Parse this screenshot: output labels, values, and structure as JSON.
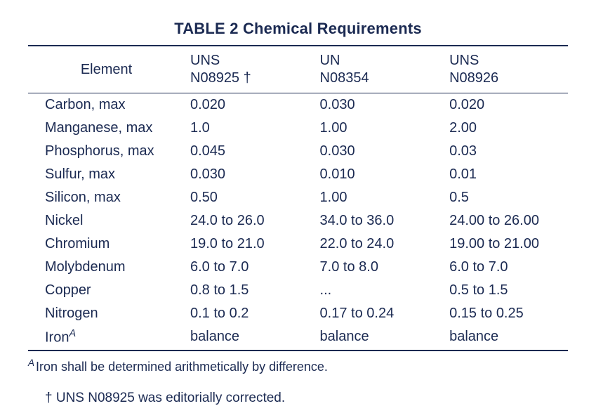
{
  "colors": {
    "text": "#1b2a52",
    "rule": "#1b2a52",
    "background": "#ffffff"
  },
  "title": "TABLE 2 Chemical Requirements",
  "table": {
    "columns": [
      {
        "line1": "Element",
        "line2": "",
        "centered": true
      },
      {
        "line1": "UNS",
        "line2": "N08925 †"
      },
      {
        "line1": "UN",
        "line2": "N08354"
      },
      {
        "line1": "UNS",
        "line2": "N08926"
      }
    ],
    "rows": [
      {
        "element": "Carbon, max",
        "c1": "0.020",
        "c2": "0.030",
        "c3": "0.020"
      },
      {
        "element": "Manganese, max",
        "c1": "1.0",
        "c2": "1.00",
        "c3": "2.00"
      },
      {
        "element": "Phosphorus, max",
        "c1": "0.045",
        "c2": "0.030",
        "c3": "0.03"
      },
      {
        "element": "Sulfur, max",
        "c1": "0.030",
        "c2": "0.010",
        "c3": "0.01"
      },
      {
        "element": "Silicon, max",
        "c1": "0.50",
        "c2": "1.00",
        "c3": "0.5"
      },
      {
        "element": "Nickel",
        "c1": "24.0 to 26.0",
        "c2": "34.0 to 36.0",
        "c3": "24.00 to 26.00"
      },
      {
        "element": "Chromium",
        "c1": "19.0 to 21.0",
        "c2": "22.0 to 24.0",
        "c3": "19.00 to 21.00"
      },
      {
        "element": "Molybdenum",
        "c1": "6.0 to 7.0",
        "c2": "7.0 to 8.0",
        "c3": "6.0 to 7.0"
      },
      {
        "element": "Copper",
        "c1": "0.8 to 1.5",
        "c2": "...",
        "c3": "0.5 to 1.5"
      },
      {
        "element": "Nitrogen",
        "c1": "0.1 to 0.2",
        "c2": "0.17 to 0.24",
        "c3": "0.15 to 0.25"
      },
      {
        "element": "Iron",
        "sup": "A",
        "c1": "balance",
        "c2": "balance",
        "c3": "balance"
      }
    ]
  },
  "footnoteA": {
    "marker": "A",
    "text": "Iron shall be determined arithmetically by difference."
  },
  "footnoteDagger": "† UNS N08925 was editorially corrected."
}
